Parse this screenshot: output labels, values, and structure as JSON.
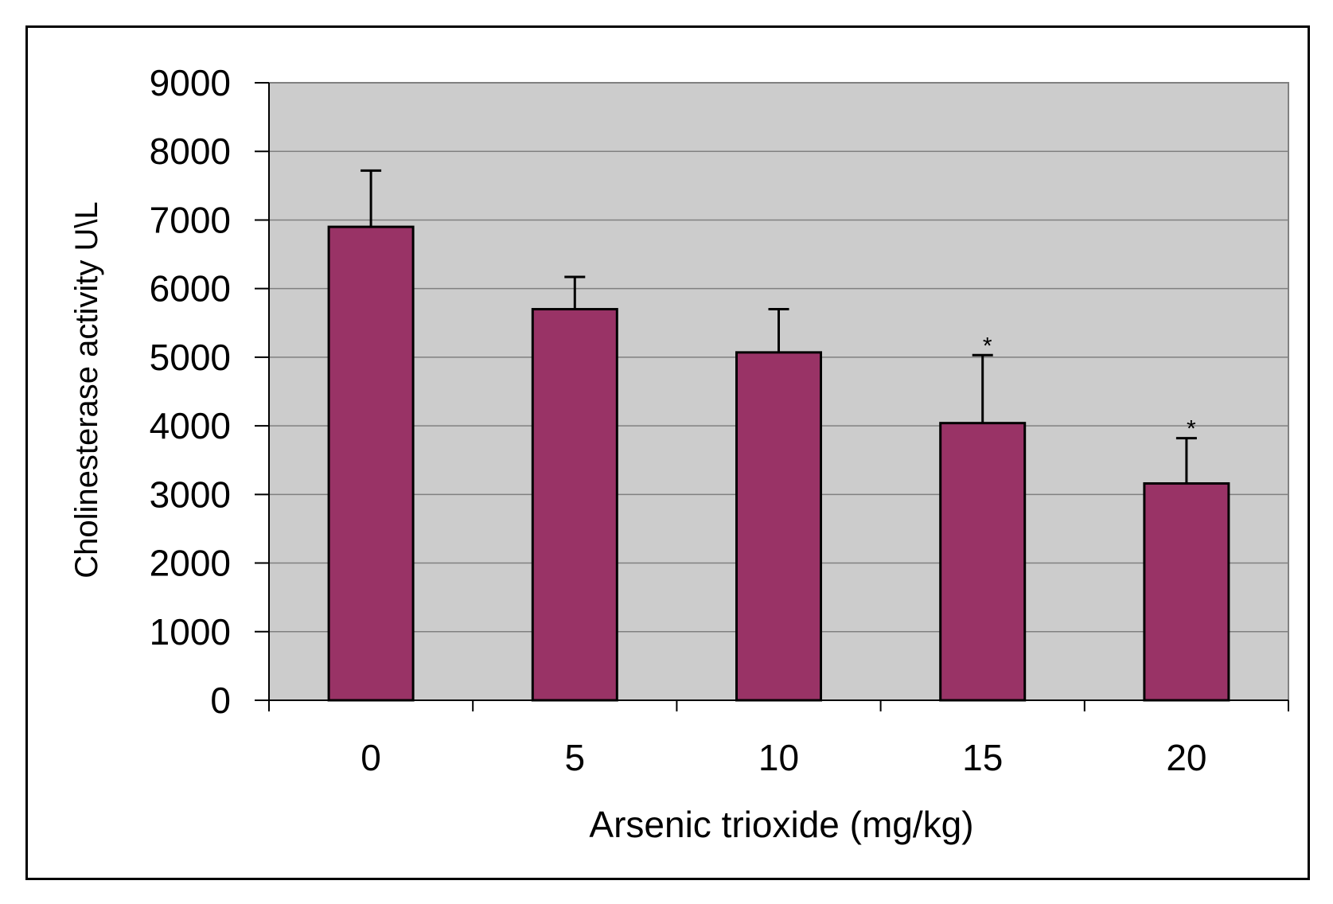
{
  "chart_data": {
    "type": "bar",
    "title": "",
    "xlabel": "Arsenic trioxide (mg/kg)",
    "ylabel": "Cholinesterase activity U\\L",
    "categories": [
      "0",
      "5",
      "10",
      "15",
      "20"
    ],
    "series": [
      {
        "values": [
          6900,
          5700,
          5070,
          4040,
          3160
        ],
        "error_plus": [
          820,
          470,
          630,
          990,
          660
        ]
      }
    ],
    "annotations": [
      "",
      "",
      "",
      "*",
      "*"
    ],
    "ylim": [
      0,
      9000
    ],
    "yticks": [
      0,
      1000,
      2000,
      3000,
      4000,
      5000,
      6000,
      7000,
      8000,
      9000
    ],
    "grid": true,
    "legend": "none",
    "colors": {
      "bar": "#993366",
      "plot_background": "#cccccc",
      "gridline": "#808080",
      "outline": "#000000"
    }
  }
}
